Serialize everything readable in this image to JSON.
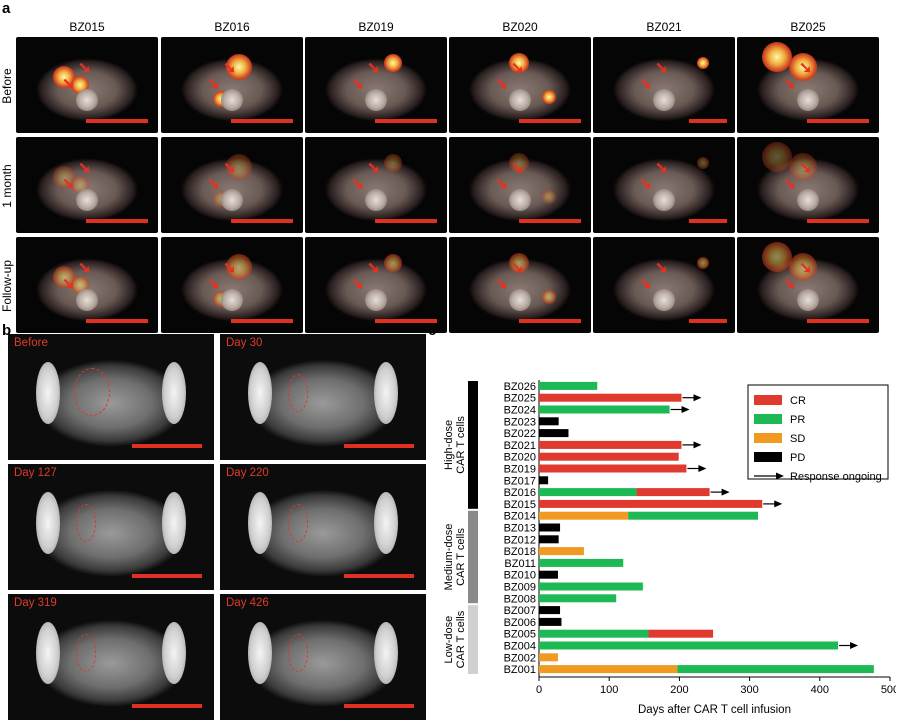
{
  "panel_labels": {
    "a": "a",
    "b": "b",
    "c": "c"
  },
  "panel_a": {
    "columns": [
      "BZ015",
      "BZ016",
      "BZ019",
      "BZ020",
      "BZ021",
      "BZ025"
    ],
    "rows": [
      "Before",
      "1 month",
      "Follow-up"
    ]
  },
  "panel_b": {
    "frames": [
      "Before",
      "Day 30",
      "Day 127",
      "Day 220",
      "Day 319",
      "Day 426"
    ]
  },
  "colors": {
    "CR": "#e03a2e",
    "PR": "#1db954",
    "SD": "#f19a22",
    "PD": "#000000",
    "high_dose_bar": "#000000",
    "medium_dose_bar": "#8a8a8a",
    "low_dose_bar": "#d0d0d0"
  },
  "chart_data": {
    "type": "bar",
    "orientation": "horizontal",
    "stacked": true,
    "xlabel": "Days after CAR T cell infusion",
    "xlim": [
      0,
      500
    ],
    "xticks": [
      0,
      100,
      200,
      300,
      400,
      500
    ],
    "legend": {
      "placement": "top-right",
      "entries": [
        "CR",
        "PR",
        "SD",
        "PD"
      ],
      "arrow_label": "Response ongoing"
    },
    "groups": [
      {
        "label": "High-dose CAR T cells",
        "from": "BZ026",
        "to": "BZ015",
        "tone": "high"
      },
      {
        "label": "Medium-dose CAR T cells",
        "from": "BZ014",
        "to": "BZ008",
        "tone": "medium"
      },
      {
        "label": "Low-dose CAR T cells",
        "from": "BZ007",
        "to": "BZ001",
        "tone": "low"
      }
    ],
    "patients": [
      {
        "id": "BZ026",
        "segments": [
          [
            "PR",
            0,
            83
          ]
        ],
        "ongoing": false
      },
      {
        "id": "BZ025",
        "segments": [
          [
            "CR",
            0,
            203
          ]
        ],
        "ongoing": true
      },
      {
        "id": "BZ024",
        "segments": [
          [
            "PR",
            0,
            186
          ]
        ],
        "ongoing": true
      },
      {
        "id": "BZ023",
        "segments": [
          [
            "PD",
            0,
            28
          ]
        ],
        "ongoing": false
      },
      {
        "id": "BZ022",
        "segments": [
          [
            "PD",
            0,
            42
          ]
        ],
        "ongoing": false
      },
      {
        "id": "BZ021",
        "segments": [
          [
            "CR",
            0,
            203
          ]
        ],
        "ongoing": true
      },
      {
        "id": "BZ020",
        "segments": [
          [
            "CR",
            0,
            199
          ]
        ],
        "ongoing": false
      },
      {
        "id": "BZ019",
        "segments": [
          [
            "CR",
            0,
            210
          ]
        ],
        "ongoing": true
      },
      {
        "id": "BZ017",
        "segments": [
          [
            "PD",
            0,
            13
          ]
        ],
        "ongoing": false
      },
      {
        "id": "BZ016",
        "segments": [
          [
            "PR",
            0,
            139
          ],
          [
            "CR",
            139,
            243
          ]
        ],
        "ongoing": true
      },
      {
        "id": "BZ015",
        "segments": [
          [
            "CR",
            0,
            318
          ]
        ],
        "ongoing": true
      },
      {
        "id": "BZ014",
        "segments": [
          [
            "SD",
            0,
            127
          ],
          [
            "PR",
            127,
            312
          ]
        ],
        "ongoing": false
      },
      {
        "id": "BZ013",
        "segments": [
          [
            "PD",
            0,
            30
          ]
        ],
        "ongoing": false
      },
      {
        "id": "BZ012",
        "segments": [
          [
            "PD",
            0,
            28
          ]
        ],
        "ongoing": false
      },
      {
        "id": "BZ018",
        "segments": [
          [
            "SD",
            0,
            64
          ]
        ],
        "ongoing": false
      },
      {
        "id": "BZ011",
        "segments": [
          [
            "PR",
            0,
            120
          ]
        ],
        "ongoing": false
      },
      {
        "id": "BZ010",
        "segments": [
          [
            "PD",
            0,
            27
          ]
        ],
        "ongoing": false
      },
      {
        "id": "BZ009",
        "segments": [
          [
            "PR",
            0,
            148
          ]
        ],
        "ongoing": false
      },
      {
        "id": "BZ008",
        "segments": [
          [
            "PR",
            0,
            110
          ]
        ],
        "ongoing": false
      },
      {
        "id": "BZ007",
        "segments": [
          [
            "PD",
            0,
            30
          ]
        ],
        "ongoing": false
      },
      {
        "id": "BZ006",
        "segments": [
          [
            "PD",
            0,
            32
          ]
        ],
        "ongoing": false
      },
      {
        "id": "BZ005",
        "segments": [
          [
            "PR",
            0,
            156
          ],
          [
            "CR",
            156,
            248
          ]
        ],
        "ongoing": false
      },
      {
        "id": "BZ004",
        "segments": [
          [
            "PR",
            0,
            426
          ]
        ],
        "ongoing": true
      },
      {
        "id": "BZ002",
        "segments": [
          [
            "SD",
            0,
            27
          ]
        ],
        "ongoing": false
      },
      {
        "id": "BZ001",
        "segments": [
          [
            "SD",
            0,
            197
          ],
          [
            "PR",
            197,
            477
          ]
        ],
        "ongoing": false
      }
    ]
  }
}
